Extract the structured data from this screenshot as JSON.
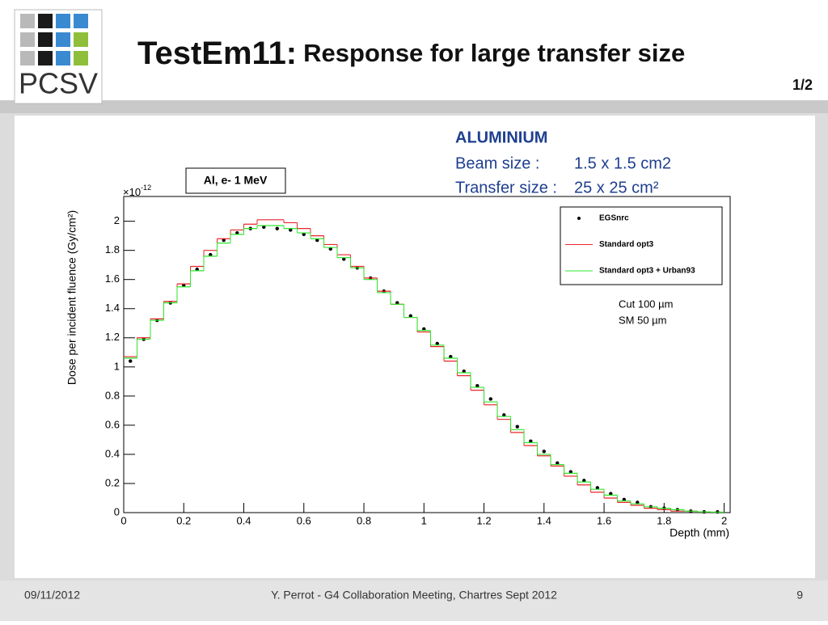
{
  "slide": {
    "logo": "PCSV",
    "title_main": "TestEm11:",
    "title_rest": "Response for large transfer size",
    "page_part": "1/2",
    "info": {
      "heading": "ALUMINIUM",
      "beam_label": "Beam size :",
      "beam_value": "1.5 x 1.5 cm2",
      "transfer_label": "Transfer size :",
      "transfer_value": "25 x 25 cm²"
    },
    "footer": {
      "date": "09/11/2012",
      "center": "Y. Perrot - G4 Collaboration Meeting, Chartres Sept 2012",
      "page": "9"
    }
  },
  "chart_data": {
    "type": "histogram",
    "annotation": "Al, e- 1 MeV",
    "notes": [
      "Cut 100 µm",
      "SM 50 µm"
    ],
    "xlabel": "Depth (mm)",
    "ylabel": "Dose per incident fluence (Gy/cm²)",
    "y_multiplier": "×10",
    "y_multiplier_exp": "-12",
    "xlim": [
      0,
      2.02
    ],
    "ylim": [
      0,
      2.17
    ],
    "xticks": [
      0,
      0.2,
      0.4,
      0.6,
      0.8,
      1,
      1.2,
      1.4,
      1.6,
      1.8,
      2
    ],
    "yticks": [
      0,
      0.2,
      0.4,
      0.6,
      0.8,
      1,
      1.2,
      1.4,
      1.6,
      1.8,
      2
    ],
    "legend": "upper right",
    "bins": [
      0,
      0.0444,
      0.0889,
      0.1333,
      0.1778,
      0.2222,
      0.2667,
      0.3111,
      0.3556,
      0.4,
      0.4444,
      0.4889,
      0.5333,
      0.5778,
      0.6222,
      0.6667,
      0.7111,
      0.7556,
      0.8,
      0.8444,
      0.8889,
      0.9333,
      0.9778,
      1.0222,
      1.0667,
      1.1111,
      1.1556,
      1.2,
      1.2444,
      1.2889,
      1.3333,
      1.3778,
      1.4222,
      1.4667,
      1.5111,
      1.5556,
      1.6,
      1.6444,
      1.6889,
      1.7333,
      1.7778,
      1.8222,
      1.8667,
      1.9111,
      1.9556,
      2
    ],
    "series": [
      {
        "name": "EGSnrc",
        "color": "#000000",
        "style": "points",
        "x": [
          0.0222,
          0.0667,
          0.1111,
          0.1556,
          0.2,
          0.2444,
          0.2889,
          0.3333,
          0.3778,
          0.4222,
          0.4667,
          0.5111,
          0.5556,
          0.6,
          0.6444,
          0.6889,
          0.7333,
          0.7778,
          0.8222,
          0.8667,
          0.9111,
          0.9556,
          1,
          1.0444,
          1.0889,
          1.1333,
          1.1778,
          1.2222,
          1.2667,
          1.3111,
          1.3556,
          1.4,
          1.4444,
          1.4889,
          1.5333,
          1.5778,
          1.6222,
          1.6667,
          1.7111,
          1.7556,
          1.8,
          1.8444,
          1.8889,
          1.9333,
          1.9778
        ],
        "values": [
          1.04,
          1.19,
          1.32,
          1.44,
          1.56,
          1.67,
          1.77,
          1.87,
          1.92,
          1.95,
          1.96,
          1.95,
          1.94,
          1.91,
          1.87,
          1.81,
          1.74,
          1.68,
          1.61,
          1.52,
          1.44,
          1.35,
          1.26,
          1.16,
          1.07,
          0.97,
          0.87,
          0.78,
          0.67,
          0.59,
          0.49,
          0.42,
          0.34,
          0.28,
          0.22,
          0.17,
          0.13,
          0.09,
          0.07,
          0.04,
          0.03,
          0.02,
          0.01,
          0.005,
          0.005
        ]
      },
      {
        "name": "Standard opt3",
        "color": "#e8262b",
        "style": "steps",
        "values": [
          1.07,
          1.2,
          1.33,
          1.45,
          1.57,
          1.69,
          1.8,
          1.88,
          1.94,
          1.98,
          2.01,
          2.01,
          1.99,
          1.95,
          1.9,
          1.84,
          1.77,
          1.69,
          1.61,
          1.52,
          1.43,
          1.34,
          1.24,
          1.14,
          1.04,
          0.94,
          0.84,
          0.74,
          0.64,
          0.55,
          0.46,
          0.39,
          0.32,
          0.25,
          0.19,
          0.14,
          0.1,
          0.07,
          0.05,
          0.03,
          0.02,
          0.01,
          0.01,
          0.005,
          0.003
        ]
      },
      {
        "name": "Standard opt3 + Urban93",
        "color": "#2ee82e",
        "style": "steps",
        "values": [
          1.06,
          1.19,
          1.32,
          1.44,
          1.55,
          1.66,
          1.76,
          1.85,
          1.91,
          1.95,
          1.97,
          1.97,
          1.95,
          1.92,
          1.88,
          1.82,
          1.75,
          1.68,
          1.6,
          1.51,
          1.43,
          1.34,
          1.25,
          1.15,
          1.06,
          0.96,
          0.86,
          0.76,
          0.66,
          0.57,
          0.48,
          0.4,
          0.33,
          0.27,
          0.21,
          0.16,
          0.12,
          0.08,
          0.06,
          0.04,
          0.03,
          0.02,
          0.01,
          0.005,
          0.003
        ]
      }
    ]
  }
}
